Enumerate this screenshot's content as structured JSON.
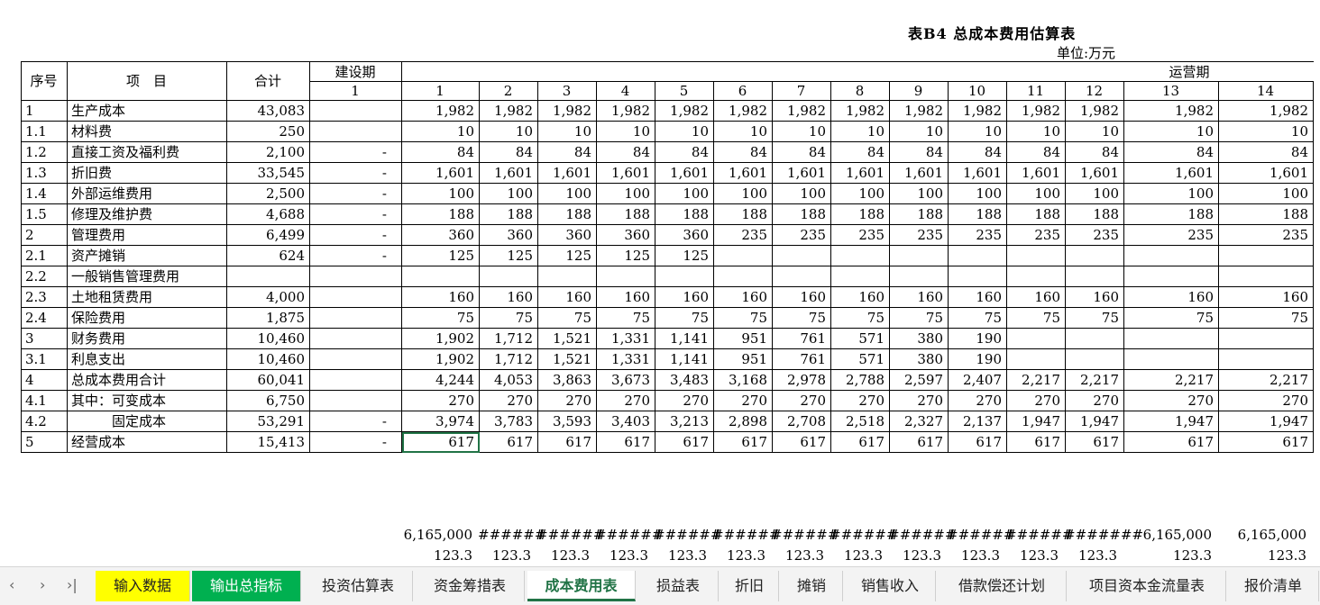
{
  "title": "表B4 总成本费用估算表",
  "unit": "单位:万元",
  "header": {
    "seq": "序号",
    "item": "项　目",
    "total": "合计",
    "construction": "建设期",
    "construction_year": "1",
    "operation": "运营期",
    "years": [
      "1",
      "2",
      "3",
      "4",
      "5",
      "6",
      "7",
      "8",
      "9",
      "10",
      "11",
      "12",
      "13",
      "14"
    ]
  },
  "rows": [
    {
      "no": "1",
      "name": "生产成本",
      "total": "43,083",
      "build": "",
      "vals": [
        "1,982",
        "1,982",
        "1,982",
        "1,982",
        "1,982",
        "1,982",
        "1,982",
        "1,982",
        "1,982",
        "1,982",
        "1,982",
        "1,982",
        "1,982",
        "1,982"
      ]
    },
    {
      "no": "1.1",
      "name": "材料费",
      "total": "250",
      "build": "",
      "vals": [
        "10",
        "10",
        "10",
        "10",
        "10",
        "10",
        "10",
        "10",
        "10",
        "10",
        "10",
        "10",
        "10",
        "10"
      ]
    },
    {
      "no": "1.2",
      "name": "直接工资及福利费",
      "total": "2,100",
      "build": "-",
      "vals": [
        "84",
        "84",
        "84",
        "84",
        "84",
        "84",
        "84",
        "84",
        "84",
        "84",
        "84",
        "84",
        "84",
        "84"
      ]
    },
    {
      "no": "1.3",
      "name": "折旧费",
      "total": "33,545",
      "build": "-",
      "vals": [
        "1,601",
        "1,601",
        "1,601",
        "1,601",
        "1,601",
        "1,601",
        "1,601",
        "1,601",
        "1,601",
        "1,601",
        "1,601",
        "1,601",
        "1,601",
        "1,601"
      ]
    },
    {
      "no": "1.4",
      "name": "外部运维费用",
      "total": "2,500",
      "build": "-",
      "vals": [
        "100",
        "100",
        "100",
        "100",
        "100",
        "100",
        "100",
        "100",
        "100",
        "100",
        "100",
        "100",
        "100",
        "100"
      ]
    },
    {
      "no": "1.5",
      "name": "修理及维护费",
      "total": "4,688",
      "build": "-",
      "vals": [
        "188",
        "188",
        "188",
        "188",
        "188",
        "188",
        "188",
        "188",
        "188",
        "188",
        "188",
        "188",
        "188",
        "188"
      ]
    },
    {
      "no": "2",
      "name": "管理费用",
      "total": "6,499",
      "build": "-",
      "vals": [
        "360",
        "360",
        "360",
        "360",
        "360",
        "235",
        "235",
        "235",
        "235",
        "235",
        "235",
        "235",
        "235",
        "235"
      ]
    },
    {
      "no": "2.1",
      "name": "资产摊销",
      "total": "624",
      "build": "-",
      "vals": [
        "125",
        "125",
        "125",
        "125",
        "125",
        "",
        "",
        "",
        "",
        "",
        "",
        "",
        "",
        ""
      ]
    },
    {
      "no": "2.2",
      "name": "一般销售管理费用",
      "total": "",
      "build": "",
      "vals": [
        "",
        "",
        "",
        "",
        "",
        "",
        "",
        "",
        "",
        "",
        "",
        "",
        "",
        ""
      ]
    },
    {
      "no": "2.3",
      "name": "土地租赁费用",
      "total": "4,000",
      "build": "",
      "vals": [
        "160",
        "160",
        "160",
        "160",
        "160",
        "160",
        "160",
        "160",
        "160",
        "160",
        "160",
        "160",
        "160",
        "160"
      ]
    },
    {
      "no": "2.4",
      "name": "保险费用",
      "total": "1,875",
      "build": "",
      "vals": [
        "75",
        "75",
        "75",
        "75",
        "75",
        "75",
        "75",
        "75",
        "75",
        "75",
        "75",
        "75",
        "75",
        "75"
      ]
    },
    {
      "no": "3",
      "name": "财务费用",
      "total": "10,460",
      "build": "",
      "vals": [
        "1,902",
        "1,712",
        "1,521",
        "1,331",
        "1,141",
        "951",
        "761",
        "571",
        "380",
        "190",
        "",
        "",
        "",
        ""
      ]
    },
    {
      "no": "3.1",
      "name": "利息支出",
      "total": "10,460",
      "build": "",
      "vals": [
        "1,902",
        "1,712",
        "1,521",
        "1,331",
        "1,141",
        "951",
        "761",
        "571",
        "380",
        "190",
        "",
        "",
        "",
        ""
      ]
    },
    {
      "no": "4",
      "name": "总成本费用合计",
      "total": "60,041",
      "build": "",
      "vals": [
        "4,244",
        "4,053",
        "3,863",
        "3,673",
        "3,483",
        "3,168",
        "2,978",
        "2,788",
        "2,597",
        "2,407",
        "2,217",
        "2,217",
        "2,217",
        "2,217"
      ]
    },
    {
      "no": "4.1",
      "name": "其中：可变成本",
      "total": "6,750",
      "build": "",
      "vals": [
        "270",
        "270",
        "270",
        "270",
        "270",
        "270",
        "270",
        "270",
        "270",
        "270",
        "270",
        "270",
        "270",
        "270"
      ]
    },
    {
      "no": "4.2",
      "name": "　　　固定成本",
      "total": "53,291",
      "build": "-",
      "vals": [
        "3,974",
        "3,783",
        "3,593",
        "3,403",
        "3,213",
        "2,898",
        "2,708",
        "2,518",
        "2,327",
        "2,137",
        "1,947",
        "1,947",
        "1,947",
        "1,947"
      ]
    },
    {
      "no": "5",
      "name": "经营成本",
      "total": "15,413",
      "build": "-",
      "vals": [
        "617",
        "617",
        "617",
        "617",
        "617",
        "617",
        "617",
        "617",
        "617",
        "617",
        "617",
        "617",
        "617",
        "617"
      ]
    }
  ],
  "footer": {
    "row1": [
      "6,165,000",
      "######",
      "######",
      "######",
      "######",
      "######",
      "######",
      "######",
      "######",
      "######",
      "######",
      "#######",
      "6,165,000",
      "6,165,000"
    ],
    "row2": [
      "123.3",
      "123.3",
      "123.3",
      "123.3",
      "123.3",
      "123.3",
      "123.3",
      "123.3",
      "123.3",
      "123.3",
      "123.3",
      "123.3",
      "123.3",
      "123.3"
    ]
  },
  "sheet_tabs": [
    {
      "label": "输入数据",
      "style": "yellow"
    },
    {
      "label": "输出总指标",
      "style": "green"
    },
    {
      "label": "投资估算表",
      "style": "normal"
    },
    {
      "label": "资金筹措表",
      "style": "normal"
    },
    {
      "label": "成本费用表",
      "style": "active"
    },
    {
      "label": "损益表",
      "style": "normal"
    },
    {
      "label": "折旧",
      "style": "normal"
    },
    {
      "label": "摊销",
      "style": "normal"
    },
    {
      "label": "销售收入",
      "style": "normal"
    },
    {
      "label": "借款偿还计划",
      "style": "normal"
    },
    {
      "label": "项目资本金流量表",
      "style": "normal"
    },
    {
      "label": "报价清单",
      "style": "normal"
    }
  ],
  "nav_icons": [
    "prev-sheet-icon",
    "next-sheet-icon",
    "last-sheet-icon"
  ],
  "colors": {
    "accent": "#217346",
    "yellow_tab": "#ffff00",
    "green_tab": "#00b050"
  }
}
